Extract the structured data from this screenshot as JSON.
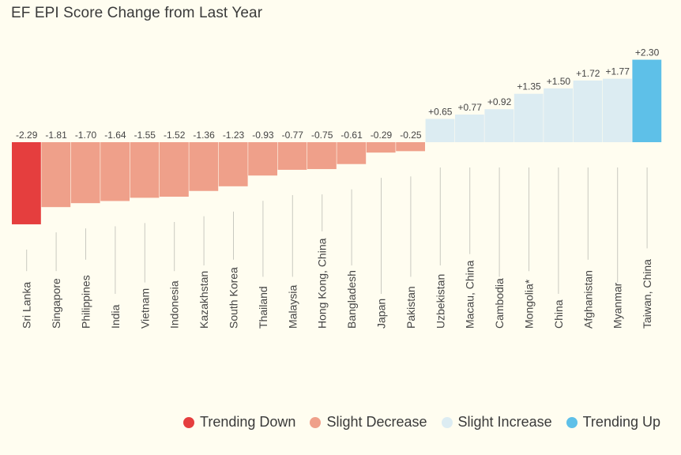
{
  "chart_data": {
    "type": "bar",
    "title": "EF EPI Score Change from Last Year",
    "categories": [
      "Sri Lanka",
      "Singapore",
      "Philippines",
      "India",
      "Vietnam",
      "Indonesia",
      "Kazakhstan",
      "South Korea",
      "Thailand",
      "Malaysia",
      "Hong Kong, China",
      "Bangladesh",
      "Japan",
      "Pakistan",
      "Uzbekistan",
      "Macau, China",
      "Cambodia",
      "Mongolia*",
      "China",
      "Afghanistan",
      "Myanmar",
      "Taiwan, China"
    ],
    "values": [
      -2.29,
      -1.81,
      -1.7,
      -1.64,
      -1.55,
      -1.52,
      -1.36,
      -1.23,
      -0.93,
      -0.77,
      -0.75,
      -0.61,
      -0.29,
      -0.25,
      0.65,
      0.77,
      0.92,
      1.35,
      1.5,
      1.72,
      1.77,
      2.3
    ],
    "value_labels": [
      "-2.29",
      "-1.81",
      "-1.70",
      "-1.64",
      "-1.55",
      "-1.52",
      "-1.36",
      "-1.23",
      "-0.93",
      "-0.77",
      "-0.75",
      "-0.61",
      "-0.29",
      "-0.25",
      "+0.65",
      "+0.77",
      "+0.92",
      "+1.35",
      "+1.50",
      "+1.72",
      "+1.77",
      "+2.30"
    ],
    "categories_group": [
      "down",
      "slight_down",
      "slight_down",
      "slight_down",
      "slight_down",
      "slight_down",
      "slight_down",
      "slight_down",
      "slight_down",
      "slight_down",
      "slight_down",
      "slight_down",
      "slight_down",
      "slight_down",
      "slight_up",
      "slight_up",
      "slight_up",
      "slight_up",
      "slight_up",
      "slight_up",
      "slight_up",
      "up"
    ],
    "legend": [
      {
        "key": "down",
        "label": "Trending Down",
        "color": "#e53e3e"
      },
      {
        "key": "slight_down",
        "label": "Slight Decrease",
        "color": "#efa08a"
      },
      {
        "key": "slight_up",
        "label": "Slight Increase",
        "color": "#dcecf2"
      },
      {
        "key": "up",
        "label": "Trending Up",
        "color": "#5ec0e8"
      }
    ],
    "legend_position": "bottom-right",
    "ylim": [
      -2.29,
      2.3
    ],
    "grid": false
  }
}
